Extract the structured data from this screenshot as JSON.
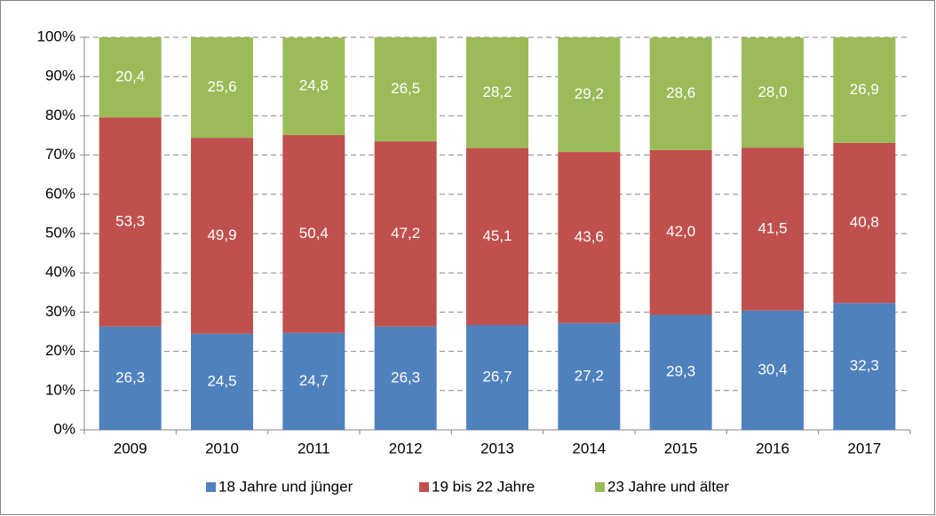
{
  "chart_data": {
    "type": "stacked_bar",
    "categories": [
      "2009",
      "2010",
      "2011",
      "2012",
      "2013",
      "2014",
      "2015",
      "2016",
      "2017"
    ],
    "series": [
      {
        "name": "18 Jahre und jünger",
        "color": "#4f81bd",
        "values": [
          26.3,
          24.5,
          24.7,
          26.3,
          26.7,
          27.2,
          29.3,
          30.4,
          32.3
        ],
        "value_labels": [
          "26,3",
          "24,5",
          "24,7",
          "26,3",
          "26,7",
          "27,2",
          "29,3",
          "30,4",
          "32,3"
        ]
      },
      {
        "name": "19 bis 22 Jahre",
        "color": "#c0504d",
        "values": [
          53.3,
          49.9,
          50.4,
          47.2,
          45.1,
          43.6,
          42.0,
          41.5,
          40.8
        ],
        "value_labels": [
          "53,3",
          "49,9",
          "50,4",
          "47,2",
          "45,1",
          "43,6",
          "42,0",
          "41,5",
          "40,8"
        ]
      },
      {
        "name": "23 Jahre und älter",
        "color": "#9bbb59",
        "values": [
          20.4,
          25.6,
          24.8,
          26.5,
          28.2,
          29.2,
          28.6,
          28.0,
          26.9
        ],
        "value_labels": [
          "20,4",
          "25,6",
          "24,8",
          "26,5",
          "28,2",
          "29,2",
          "28,6",
          "28,0",
          "26,9"
        ]
      }
    ],
    "ylim": [
      0,
      100
    ],
    "yticks": [
      {
        "value": 0,
        "label": "0%"
      },
      {
        "value": 10,
        "label": "10%"
      },
      {
        "value": 20,
        "label": "20%"
      },
      {
        "value": 30,
        "label": "30%"
      },
      {
        "value": 40,
        "label": "40%"
      },
      {
        "value": 50,
        "label": "50%"
      },
      {
        "value": 60,
        "label": "60%"
      },
      {
        "value": 70,
        "label": "70%"
      },
      {
        "value": 80,
        "label": "80%"
      },
      {
        "value": 90,
        "label": "90%"
      },
      {
        "value": 100,
        "label": "100%"
      }
    ],
    "grid": true,
    "legend": "bottom"
  }
}
